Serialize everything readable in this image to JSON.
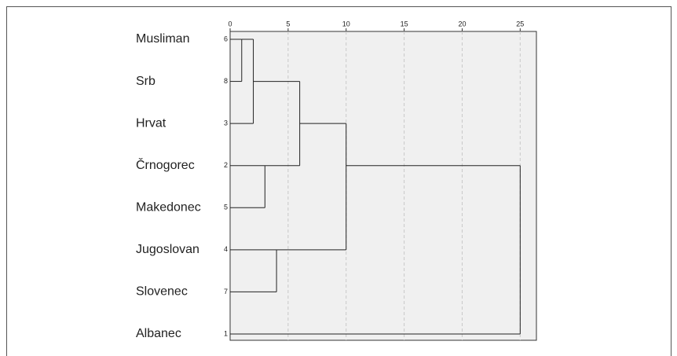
{
  "chart_data": {
    "type": "dendrogram",
    "xlim": [
      0,
      26.4
    ],
    "xticks": [
      0,
      5,
      10,
      15,
      20,
      25
    ],
    "grid": true,
    "tree": {
      "height": 25,
      "children": [
        {
          "height": 10,
          "children": [
            {
              "height": 6,
              "children": [
                {
                  "height": 2,
                  "children": [
                    {
                      "height": 1,
                      "children": [
                        {
                          "label": "Musliman",
                          "id": 6
                        },
                        {
                          "label": "Srb",
                          "id": 8
                        }
                      ]
                    },
                    {
                      "label": "Hrvat",
                      "id": 3
                    }
                  ]
                },
                {
                  "height": 3,
                  "children": [
                    {
                      "label": "Črnogorec",
                      "id": 2
                    },
                    {
                      "label": "Makedonec",
                      "id": 5
                    }
                  ]
                }
              ]
            },
            {
              "height": 4,
              "children": [
                {
                  "label": "Jugoslovan",
                  "id": 4
                },
                {
                  "label": "Slovenec",
                  "id": 7
                }
              ]
            }
          ]
        },
        {
          "label": "Albanec",
          "id": 1
        }
      ]
    }
  }
}
